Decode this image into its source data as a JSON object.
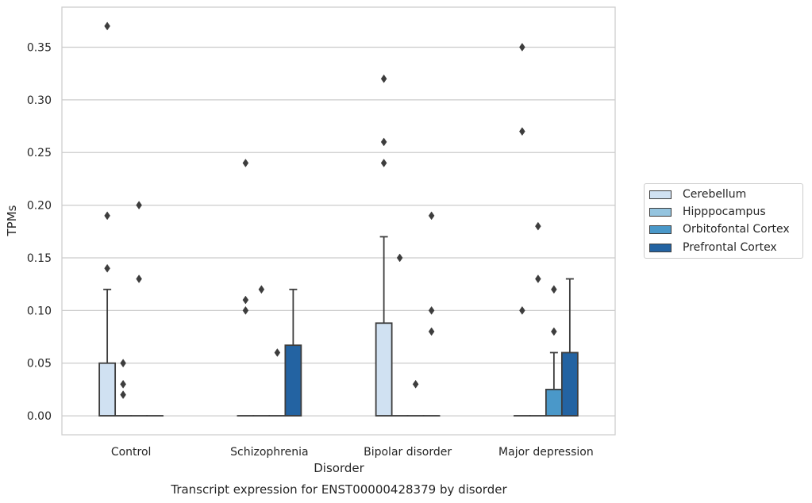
{
  "chart_data": {
    "type": "box",
    "caption": "Transcript expression for ENST00000428379 by disorder",
    "xlabel": "Disorder",
    "ylabel": "TPMs",
    "ylim": [
      -0.018,
      0.388
    ],
    "yticks": [
      0.0,
      0.05,
      0.1,
      0.15,
      0.2,
      0.25,
      0.3,
      0.35
    ],
    "ytick_labels": [
      "0.00",
      "0.05",
      "0.10",
      "0.15",
      "0.20",
      "0.25",
      "0.30",
      "0.35"
    ],
    "grid": "horizontal",
    "legend_position": "center-right",
    "categories": [
      "Control",
      "Schizophrenia",
      "Bipolar disorder",
      "Major depression"
    ],
    "series": [
      {
        "name": "Cerebellum",
        "color": "#d0e1f2",
        "boxes": [
          {
            "q1": 0.0,
            "median": 0.0,
            "q3": 0.05,
            "whisker_low": 0.0,
            "whisker_high": 0.12,
            "outliers": [
              0.14,
              0.19,
              0.37
            ]
          },
          {
            "q1": 0.0,
            "median": 0.0,
            "q3": 0.0,
            "whisker_low": 0.0,
            "whisker_high": 0.0,
            "outliers": [
              0.1,
              0.11,
              0.24
            ]
          },
          {
            "q1": 0.0,
            "median": 0.0,
            "q3": 0.088,
            "whisker_low": 0.0,
            "whisker_high": 0.17,
            "outliers": [
              0.24,
              0.26,
              0.32
            ]
          },
          {
            "q1": 0.0,
            "median": 0.0,
            "q3": 0.0,
            "whisker_low": 0.0,
            "whisker_high": 0.0,
            "outliers": [
              0.1,
              0.27,
              0.35
            ]
          }
        ]
      },
      {
        "name": "Hipppocampus",
        "color": "#94c4df",
        "boxes": [
          {
            "q1": 0.0,
            "median": 0.0,
            "q3": 0.0,
            "whisker_low": 0.0,
            "whisker_high": 0.0,
            "outliers": [
              0.02,
              0.03,
              0.05
            ]
          },
          {
            "q1": 0.0,
            "median": 0.0,
            "q3": 0.0,
            "whisker_low": 0.0,
            "whisker_high": 0.0,
            "outliers": [
              0.12
            ]
          },
          {
            "q1": 0.0,
            "median": 0.0,
            "q3": 0.0,
            "whisker_low": 0.0,
            "whisker_high": 0.0,
            "outliers": [
              0.15
            ]
          },
          {
            "q1": 0.0,
            "median": 0.0,
            "q3": 0.0,
            "whisker_low": 0.0,
            "whisker_high": 0.0,
            "outliers": [
              0.13,
              0.18
            ]
          }
        ]
      },
      {
        "name": "Orbitofontal Cortex",
        "color": "#4a98c9",
        "boxes": [
          {
            "q1": 0.0,
            "median": 0.0,
            "q3": 0.0,
            "whisker_low": 0.0,
            "whisker_high": 0.0,
            "outliers": [
              0.13,
              0.2
            ]
          },
          {
            "q1": 0.0,
            "median": 0.0,
            "q3": 0.0,
            "whisker_low": 0.0,
            "whisker_high": 0.0,
            "outliers": [
              0.06
            ]
          },
          {
            "q1": 0.0,
            "median": 0.0,
            "q3": 0.0,
            "whisker_low": 0.0,
            "whisker_high": 0.0,
            "outliers": [
              0.03
            ]
          },
          {
            "q1": 0.0,
            "median": 0.0,
            "q3": 0.025,
            "whisker_low": 0.0,
            "whisker_high": 0.06,
            "outliers": [
              0.08,
              0.12
            ]
          }
        ]
      },
      {
        "name": "Prefrontal Cortex",
        "color": "#2363a2",
        "boxes": [
          {
            "q1": 0.0,
            "median": 0.0,
            "q3": 0.0,
            "whisker_low": 0.0,
            "whisker_high": 0.0,
            "outliers": []
          },
          {
            "q1": 0.0,
            "median": 0.0,
            "q3": 0.067,
            "whisker_low": 0.0,
            "whisker_high": 0.12,
            "outliers": []
          },
          {
            "q1": 0.0,
            "median": 0.0,
            "q3": 0.0,
            "whisker_low": 0.0,
            "whisker_high": 0.0,
            "outliers": [
              0.08,
              0.1,
              0.19
            ]
          },
          {
            "q1": 0.0,
            "median": 0.0,
            "q3": 0.06,
            "whisker_low": 0.0,
            "whisker_high": 0.13,
            "outliers": []
          }
        ]
      }
    ]
  }
}
